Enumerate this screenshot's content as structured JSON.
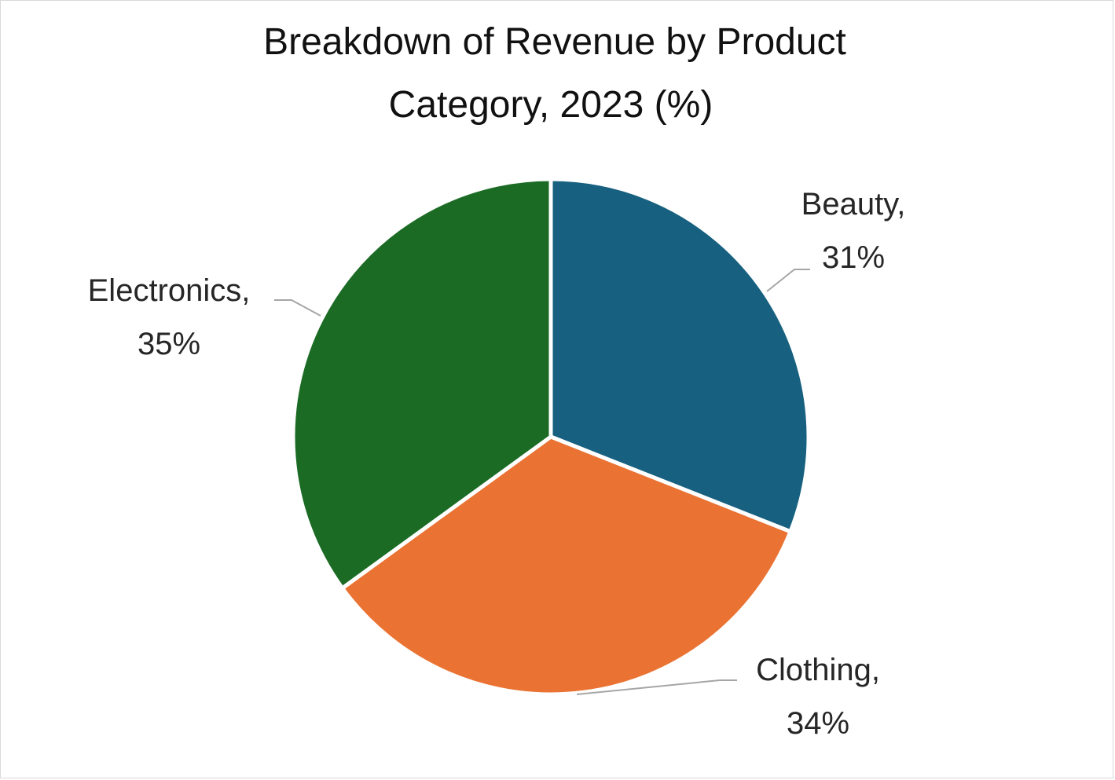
{
  "chart_data": {
    "type": "pie",
    "title_lines": [
      "Breakdown of Revenue by Product",
      "Category, 2023 (%)"
    ],
    "categories": [
      "Beauty",
      "Clothing",
      "Electronics"
    ],
    "values": [
      31,
      34,
      35
    ],
    "label_names": [
      "Beauty,",
      "Clothing,",
      "Electronics,"
    ],
    "label_values": [
      "31%",
      "34%",
      "35%"
    ],
    "colors": [
      "#17607f",
      "#ea7333",
      "#1b6b25"
    ],
    "legend": "none"
  }
}
